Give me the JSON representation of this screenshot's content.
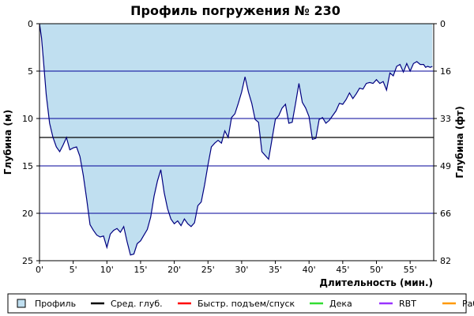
{
  "chart_data": {
    "type": "area",
    "title": "Профиль погружения № 230",
    "xlabel": "Длительность (мин.)",
    "ylabel": "Глубина (м)",
    "ylabel_right": "Глубина (фт)",
    "xlim": [
      0,
      58.5
    ],
    "ylim": [
      25,
      0
    ],
    "x_ticks": [
      0,
      5,
      10,
      15,
      20,
      25,
      30,
      35,
      40,
      45,
      50,
      55
    ],
    "x_tick_labels": [
      "0'",
      "5'",
      "10'",
      "15'",
      "20'",
      "25'",
      "30'",
      "35'",
      "40'",
      "45'",
      "50'",
      "55'"
    ],
    "y_ticks": [
      0,
      5,
      10,
      15,
      20,
      25
    ],
    "y_tick_labels": [
      "0",
      "5",
      "10",
      "15",
      "20",
      "25"
    ],
    "y_right_ticks": [
      0,
      16,
      33,
      49,
      66,
      82
    ],
    "grid": "horizontal",
    "average_depth": 12,
    "legend_position": "bottom",
    "legend": [
      {
        "label": "Профиль",
        "color": "#c0dff0",
        "kind": "box"
      },
      {
        "label": "Сред. глуб.",
        "color": "#000000",
        "kind": "line"
      },
      {
        "label": "Быстр. подъем/спуск",
        "color": "#ff0000",
        "kind": "line"
      },
      {
        "label": "Дека",
        "color": "#33dd33",
        "kind": "line"
      },
      {
        "label": "RBT",
        "color": "#9933ff",
        "kind": "line"
      },
      {
        "label": "Раб.",
        "color": "#ff9900",
        "kind": "line"
      }
    ],
    "colors": {
      "fill": "#c0dff0",
      "profile_line": "#000080",
      "grid": "#000099",
      "average_line": "#000000"
    },
    "series": [
      {
        "name": "Профиль",
        "x": [
          0,
          0.3,
          0.6,
          1,
          1.5,
          2,
          2.5,
          3,
          3.5,
          4,
          4.5,
          5,
          5.5,
          6,
          6.5,
          7,
          7.5,
          8,
          8.5,
          9,
          9.5,
          10,
          10.5,
          11,
          11.5,
          12,
          12.5,
          13,
          13.5,
          14,
          14.5,
          15,
          15.5,
          16,
          16.5,
          17,
          17.5,
          18,
          18.5,
          19,
          19.5,
          20,
          20.5,
          21,
          21.5,
          22,
          22.5,
          23,
          23.5,
          24,
          24.5,
          25,
          25.5,
          26,
          26.5,
          27,
          27.5,
          28,
          28.5,
          29,
          29.5,
          30,
          30.5,
          31,
          31.5,
          32,
          32.5,
          33,
          33.5,
          34,
          34.5,
          35,
          35.5,
          36,
          36.5,
          37,
          37.5,
          38,
          38.5,
          39,
          39.5,
          40,
          40.5,
          41,
          41.5,
          42,
          42.5,
          43,
          43.5,
          44,
          44.5,
          45,
          45.5,
          46,
          46.5,
          47,
          47.5,
          48,
          48.5,
          49,
          49.5,
          50,
          50.5,
          51,
          51.5,
          52,
          52.5,
          53,
          53.5,
          54,
          54.5,
          55,
          55.5,
          56,
          56.5,
          57,
          57.3,
          57.6,
          58,
          58.3
        ],
        "depth": [
          0,
          1.5,
          4,
          7.5,
          10.5,
          12,
          13,
          13.5,
          12.8,
          12,
          13.3,
          13.1,
          13,
          14,
          16,
          18.5,
          21.2,
          21.8,
          22.3,
          22.5,
          22.4,
          23.6,
          22.2,
          21.8,
          21.6,
          22,
          21.4,
          23,
          24.4,
          24.3,
          23.2,
          22.9,
          22.3,
          21.7,
          20.4,
          18.2,
          16.6,
          15.4,
          17.8,
          19.5,
          20.6,
          21.1,
          20.8,
          21.3,
          20.6,
          21.1,
          21.4,
          21,
          19.2,
          18.8,
          17,
          14.9,
          13,
          12.6,
          12.3,
          12.6,
          11.3,
          12,
          9.9,
          9.5,
          8.4,
          7.2,
          5.6,
          7.2,
          8.4,
          10.1,
          10.4,
          13.5,
          13.9,
          14.3,
          12.2,
          10.1,
          9.7,
          8.9,
          8.5,
          10.5,
          10.4,
          8.4,
          6.3,
          8.3,
          8.9,
          9.8,
          12.2,
          12.1,
          10.1,
          9.9,
          10.5,
          10.2,
          9.7,
          9.2,
          8.4,
          8.5,
          8,
          7.3,
          7.9,
          7.4,
          6.8,
          6.9,
          6.3,
          6.2,
          6.3,
          5.9,
          6.3,
          6.1,
          7,
          5.2,
          5.5,
          4.5,
          4.3,
          5.1,
          4.2,
          5,
          4.2,
          4,
          4.3,
          4.3,
          4.6,
          4.5,
          4.6,
          4.5,
          5.1,
          2.9,
          2.5,
          2.5,
          3.2,
          1.2,
          0
        ]
      }
    ]
  }
}
